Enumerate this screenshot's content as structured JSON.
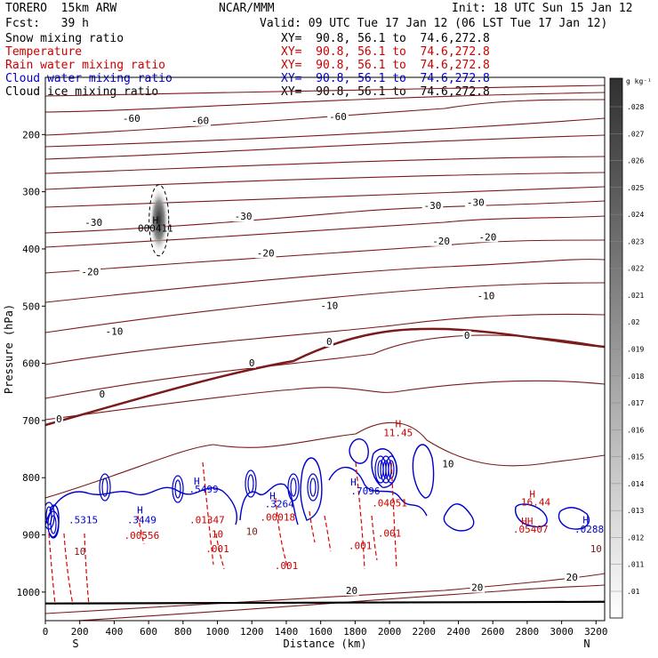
{
  "header": {
    "model": "TORERO  15km ARW",
    "center": "NCAR/MMM",
    "init": "Init: 18 UTC Sun 15 Jan 12",
    "fcst": "Fcst:   39 h",
    "valid": "Valid: 09 UTC Tue 17 Jan 12 (06 LST Tue 17 Jan 12)"
  },
  "fields": [
    {
      "name": "Snow mixing ratio",
      "xy": "XY=  90.8, 56.1 to  74.6,272.8",
      "color": "#000000"
    },
    {
      "name": "Temperature",
      "xy": "XY=  90.8, 56.1 to  74.6,272.8",
      "color": "#cc0000"
    },
    {
      "name": "Rain water mixing ratio",
      "xy": "XY=  90.8, 56.1 to  74.6,272.8",
      "color": "#cc0000"
    },
    {
      "name": "Cloud water mixing ratio",
      "xy": "XY=  90.8, 56.1 to  74.6,272.8",
      "color": "#0000cc"
    },
    {
      "name": "Cloud ice mixing ratio",
      "xy": "XY=  90.8, 56.1 to  74.6,272.8",
      "color": "#000000"
    }
  ],
  "colors": {
    "temperature": "#7a1a1a",
    "rain": "#dd0000",
    "cloud_water": "#0000cc",
    "snow": "#000000"
  },
  "chart_data": {
    "type": "contour",
    "xlabel": "Distance (km)",
    "ylabel": "Pressure (hPa)",
    "xlim": [
      0,
      3250
    ],
    "ylim": [
      1050,
      100
    ],
    "xticks": [
      0,
      200,
      400,
      600,
      800,
      1000,
      1200,
      1400,
      1600,
      1800,
      2000,
      2200,
      2400,
      2600,
      2800,
      3000,
      3200
    ],
    "yticks": [
      200,
      300,
      400,
      500,
      600,
      700,
      800,
      900,
      1000
    ],
    "x_end_labels": {
      "left": "S",
      "right": "N"
    },
    "colorbar": {
      "unit": "g kg⁻¹",
      "ticks": [
        ".01",
        ".011",
        ".012",
        ".013",
        ".014",
        ".015",
        ".016",
        ".017",
        ".018",
        ".019",
        ".02",
        ".021",
        ".022",
        ".023",
        ".024",
        ".025",
        ".026",
        ".027",
        ".028"
      ]
    },
    "temperature_labels": [
      {
        "x": 500,
        "p": 178,
        "text": "-60"
      },
      {
        "x": 900,
        "p": 182,
        "text": "-60"
      },
      {
        "x": 1700,
        "p": 175,
        "text": "-60"
      },
      {
        "x": 280,
        "p": 360,
        "text": "-30"
      },
      {
        "x": 1150,
        "p": 349,
        "text": "-30"
      },
      {
        "x": 2250,
        "p": 330,
        "text": "-30"
      },
      {
        "x": 2500,
        "p": 325,
        "text": "-30"
      },
      {
        "x": 260,
        "p": 446,
        "text": "-20"
      },
      {
        "x": 1280,
        "p": 413,
        "text": "-20"
      },
      {
        "x": 2300,
        "p": 392,
        "text": "-20"
      },
      {
        "x": 2570,
        "p": 385,
        "text": "-20"
      },
      {
        "x": 400,
        "p": 550,
        "text": "-10"
      },
      {
        "x": 1650,
        "p": 505,
        "text": "-10"
      },
      {
        "x": 2560,
        "p": 488,
        "text": "-10"
      },
      {
        "x": 330,
        "p": 660,
        "text": "0"
      },
      {
        "x": 1200,
        "p": 605,
        "text": "0"
      },
      {
        "x": 1650,
        "p": 568,
        "text": "0"
      },
      {
        "x": 2450,
        "p": 557,
        "text": "0"
      },
      {
        "x": 80,
        "p": 703,
        "text": "0"
      },
      {
        "x": 2340,
        "p": 782,
        "text": "10"
      },
      {
        "x": 1780,
        "p": 1003,
        "text": "20"
      },
      {
        "x": 2510,
        "p": 998,
        "text": "20"
      },
      {
        "x": 3060,
        "p": 980,
        "text": "20"
      }
    ],
    "maxima": [
      {
        "x": 640,
        "p": 356,
        "text": "H",
        "color": "#000000"
      },
      {
        "x": 640,
        "p": 370,
        "text": "000411",
        "color": "#000000"
      },
      {
        "x": 2050,
        "p": 712,
        "text": "H",
        "color": "#cc0000"
      },
      {
        "x": 2050,
        "p": 727,
        "text": "11.45",
        "color": "#cc0000"
      },
      {
        "x": 2830,
        "p": 835,
        "text": "H",
        "color": "#cc0000"
      },
      {
        "x": 2850,
        "p": 849,
        "text": "16.44",
        "color": "#cc0000"
      },
      {
        "x": 880,
        "p": 812,
        "text": "H",
        "color": "#0000cc"
      },
      {
        "x": 920,
        "p": 826,
        "text": ".5499",
        "color": "#0000cc"
      },
      {
        "x": 1320,
        "p": 838,
        "text": "H",
        "color": "#0000cc"
      },
      {
        "x": 1360,
        "p": 852,
        "text": ".3264",
        "color": "#0000cc"
      },
      {
        "x": 1790,
        "p": 814,
        "text": "H",
        "color": "#0000cc"
      },
      {
        "x": 1860,
        "p": 829,
        "text": ".7096",
        "color": "#0000cc"
      },
      {
        "x": 220,
        "p": 880,
        "text": ".5315",
        "color": "#0000cc"
      },
      {
        "x": 550,
        "p": 863,
        "text": "H",
        "color": "#0000cc"
      },
      {
        "x": 560,
        "p": 880,
        "text": ".3449",
        "color": "#0000cc"
      },
      {
        "x": 3140,
        "p": 880,
        "text": "H",
        "color": "#0000cc"
      },
      {
        "x": 3160,
        "p": 896,
        "text": ".0288",
        "color": "#0000cc"
      },
      {
        "x": 2800,
        "p": 882,
        "text": "HH",
        "color": "#cc0000"
      },
      {
        "x": 2820,
        "p": 896,
        "text": ".05407",
        "color": "#cc0000"
      },
      {
        "x": 560,
        "p": 907,
        "text": ".00556",
        "color": "#cc0000"
      },
      {
        "x": 940,
        "p": 880,
        "text": ".01347",
        "color": "#cc0000"
      },
      {
        "x": 1350,
        "p": 875,
        "text": ".00018",
        "color": "#cc0000"
      },
      {
        "x": 2000,
        "p": 850,
        "text": ".04051",
        "color": "#cc0000"
      },
      {
        "x": 1000,
        "p": 905,
        "text": "10",
        "color": "#cc0000"
      },
      {
        "x": 1000,
        "p": 930,
        "text": ".001",
        "color": "#cc0000"
      },
      {
        "x": 1200,
        "p": 900,
        "text": "10",
        "color": "#7a1a1a"
      },
      {
        "x": 1400,
        "p": 960,
        "text": ".001",
        "color": "#cc0000"
      },
      {
        "x": 1830,
        "p": 925,
        "text": ".001",
        "color": "#cc0000"
      },
      {
        "x": 2000,
        "p": 903,
        "text": ".001",
        "color": "#cc0000"
      },
      {
        "x": 200,
        "p": 935,
        "text": "10",
        "color": "#7a1a1a"
      },
      {
        "x": 3200,
        "p": 930,
        "text": "10",
        "color": "#7a1a1a"
      }
    ]
  }
}
